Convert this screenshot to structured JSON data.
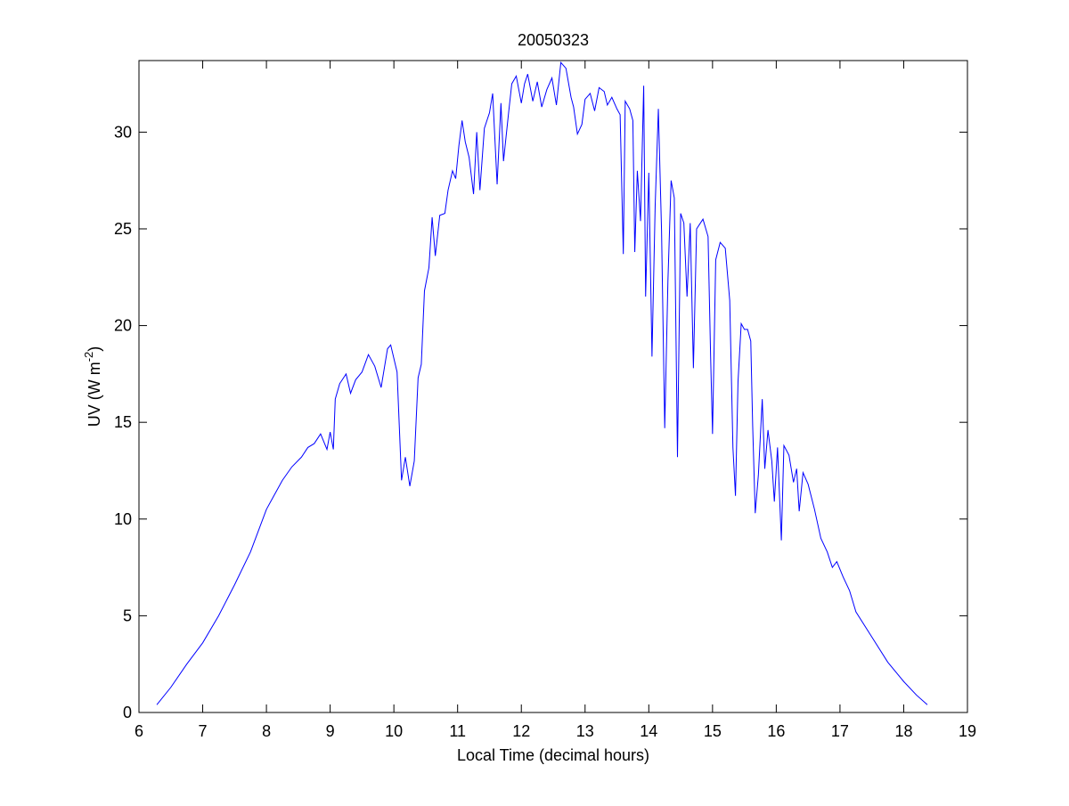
{
  "chart_data": {
    "type": "line",
    "title": "20050323",
    "x_label": "Local Time (decimal hours)",
    "y_label_parts": [
      "UV (W m",
      "-2",
      ")"
    ],
    "color": "#0000ff",
    "xlim": [
      6,
      19
    ],
    "ylim": [
      0,
      33.7
    ],
    "xticks": [
      6,
      7,
      8,
      9,
      10,
      11,
      12,
      13,
      14,
      15,
      16,
      17,
      18,
      19
    ],
    "yticks": [
      0,
      5,
      10,
      15,
      20,
      25,
      30
    ],
    "x": [
      6.28,
      6.5,
      6.75,
      7.0,
      7.25,
      7.5,
      7.75,
      8.0,
      8.1,
      8.25,
      8.4,
      8.55,
      8.65,
      8.75,
      8.85,
      8.95,
      9.0,
      9.05,
      9.08,
      9.15,
      9.25,
      9.32,
      9.4,
      9.5,
      9.6,
      9.7,
      9.8,
      9.9,
      9.95,
      10.05,
      10.12,
      10.18,
      10.25,
      10.32,
      10.38,
      10.43,
      10.48,
      10.55,
      10.6,
      10.65,
      10.72,
      10.8,
      10.85,
      10.92,
      10.97,
      11.02,
      11.07,
      11.12,
      11.18,
      11.25,
      11.3,
      11.35,
      11.42,
      11.5,
      11.55,
      11.62,
      11.68,
      11.72,
      11.8,
      11.85,
      11.92,
      12.0,
      12.05,
      12.1,
      12.18,
      12.25,
      12.32,
      12.4,
      12.48,
      12.55,
      12.62,
      12.7,
      12.78,
      12.82,
      12.88,
      12.95,
      13.0,
      13.08,
      13.15,
      13.22,
      13.3,
      13.35,
      13.42,
      13.5,
      13.55,
      13.6,
      13.63,
      13.7,
      13.75,
      13.78,
      13.82,
      13.87,
      13.92,
      13.95,
      14.0,
      14.05,
      14.1,
      14.15,
      14.2,
      14.25,
      14.3,
      14.35,
      14.4,
      14.45,
      14.5,
      14.55,
      14.6,
      14.65,
      14.7,
      14.75,
      14.85,
      14.93,
      14.97,
      15.0,
      15.05,
      15.12,
      15.2,
      15.27,
      15.32,
      15.36,
      15.4,
      15.45,
      15.5,
      15.55,
      15.6,
      15.63,
      15.67,
      15.72,
      15.78,
      15.82,
      15.87,
      15.93,
      15.97,
      16.02,
      16.08,
      16.12,
      16.2,
      16.27,
      16.32,
      16.36,
      16.42,
      16.5,
      16.6,
      16.7,
      16.8,
      16.88,
      16.95,
      17.05,
      17.15,
      17.25,
      17.5,
      17.75,
      18.0,
      18.2,
      18.37
    ],
    "values": [
      0.4,
      1.3,
      2.5,
      3.6,
      5.0,
      6.6,
      8.3,
      10.5,
      11.1,
      12.0,
      12.7,
      13.2,
      13.7,
      13.9,
      14.4,
      13.6,
      14.5,
      13.6,
      16.2,
      17.0,
      17.5,
      16.5,
      17.2,
      17.6,
      18.5,
      17.9,
      16.8,
      18.8,
      19.0,
      17.6,
      12.0,
      13.2,
      11.7,
      13.0,
      17.3,
      18.0,
      21.8,
      23.0,
      25.6,
      23.6,
      25.7,
      25.8,
      27.0,
      28.0,
      27.6,
      29.3,
      30.6,
      29.5,
      28.7,
      26.8,
      30.0,
      27.0,
      30.2,
      31.0,
      32.0,
      27.3,
      31.5,
      28.5,
      31.0,
      32.5,
      32.9,
      31.5,
      32.5,
      33.0,
      31.6,
      32.6,
      31.3,
      32.2,
      32.8,
      31.4,
      33.6,
      33.3,
      31.8,
      31.3,
      29.9,
      30.4,
      31.7,
      32.0,
      31.1,
      32.3,
      32.1,
      31.4,
      31.8,
      31.2,
      30.9,
      23.7,
      31.6,
      31.2,
      30.6,
      23.8,
      28.0,
      25.4,
      32.4,
      21.5,
      27.9,
      18.4,
      26.2,
      31.2,
      24.9,
      14.7,
      22.3,
      27.5,
      26.6,
      13.2,
      25.8,
      25.3,
      21.5,
      25.3,
      17.8,
      25.0,
      25.5,
      24.6,
      18.4,
      14.4,
      23.4,
      24.3,
      24.0,
      21.3,
      13.7,
      11.2,
      17.1,
      20.1,
      19.8,
      19.8,
      19.2,
      14.8,
      10.3,
      12.3,
      16.2,
      12.6,
      14.6,
      13.0,
      10.9,
      13.7,
      8.9,
      13.8,
      13.3,
      11.9,
      12.6,
      10.4,
      12.4,
      11.8,
      10.5,
      9.0,
      8.3,
      7.5,
      7.8,
      7.0,
      6.3,
      5.2,
      3.9,
      2.6,
      1.6,
      0.9,
      0.4
    ]
  }
}
